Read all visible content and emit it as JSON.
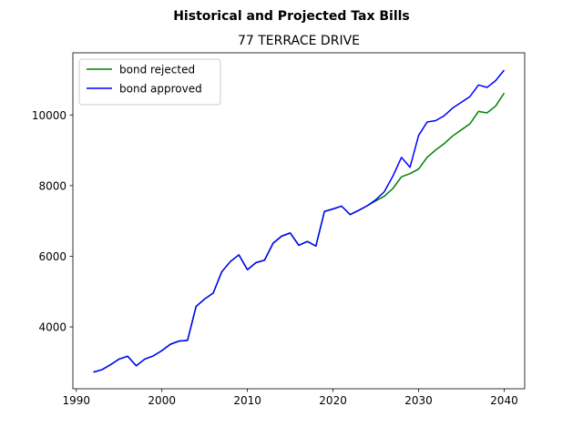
{
  "chart_data": {
    "type": "line",
    "suptitle": "Historical and Projected Tax Bills",
    "title": "77 TERRACE DRIVE",
    "xlabel": "",
    "ylabel": "",
    "xlim": [
      1989.6,
      2042.4
    ],
    "ylim": [
      2250,
      11760
    ],
    "xticks": [
      1990,
      2000,
      2010,
      2020,
      2030,
      2040
    ],
    "yticks": [
      4000,
      6000,
      8000,
      10000
    ],
    "grid": false,
    "legend_position": "top-left",
    "x": [
      1992,
      1993,
      1994,
      1995,
      1996,
      1997,
      1998,
      1999,
      2000,
      2001,
      2002,
      2003,
      2004,
      2005,
      2006,
      2007,
      2008,
      2009,
      2010,
      2011,
      2012,
      2013,
      2014,
      2015,
      2016,
      2017,
      2018,
      2019,
      2020,
      2021,
      2022,
      2023,
      2024,
      2025,
      2026,
      2027,
      2028,
      2029,
      2030,
      2031,
      2032,
      2033,
      2034,
      2035,
      2036,
      2037,
      2038,
      2039,
      2040
    ],
    "series": [
      {
        "name": "bond rejected",
        "color": "#008000",
        "values": [
          2720,
          2790,
          2930,
          3090,
          3170,
          2900,
          3090,
          3180,
          3330,
          3510,
          3600,
          3620,
          4580,
          4790,
          4960,
          5560,
          5850,
          6040,
          5620,
          5820,
          5890,
          6370,
          6570,
          6660,
          6310,
          6420,
          6290,
          7270,
          7340,
          7420,
          7180,
          7300,
          7430,
          7570,
          7700,
          7920,
          8250,
          8340,
          8470,
          8800,
          9010,
          9190,
          9410,
          9580,
          9750,
          10100,
          10060,
          10250,
          10620
        ]
      },
      {
        "name": "bond approved",
        "color": "#0000ff",
        "values": [
          2720,
          2790,
          2930,
          3090,
          3170,
          2900,
          3090,
          3180,
          3330,
          3510,
          3600,
          3620,
          4580,
          4790,
          4960,
          5560,
          5850,
          6040,
          5620,
          5820,
          5890,
          6370,
          6570,
          6660,
          6310,
          6420,
          6290,
          7270,
          7340,
          7420,
          7180,
          7300,
          7430,
          7600,
          7830,
          8270,
          8800,
          8520,
          9420,
          9800,
          9840,
          9980,
          10200,
          10360,
          10520,
          10850,
          10780,
          10970,
          11270
        ]
      }
    ]
  }
}
